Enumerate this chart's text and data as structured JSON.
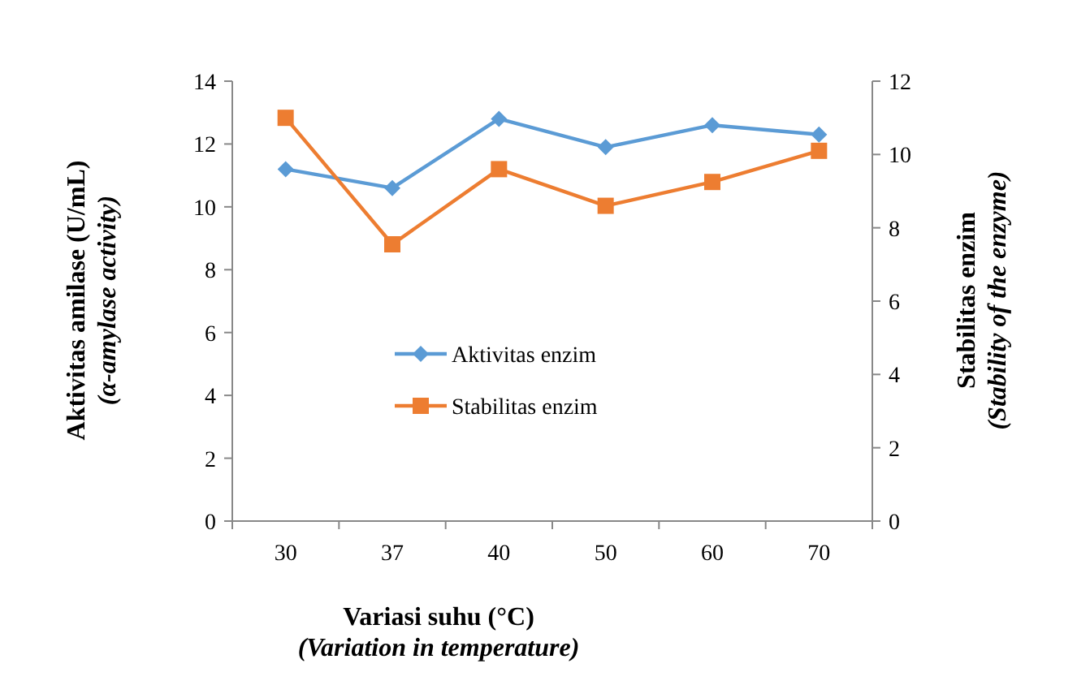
{
  "chart_data": {
    "type": "line",
    "xlabel": "Variasi suhu (°C)\n(Variation in temperature)",
    "ylabel": "Aktivitas amilase (U/mL)\n(α-amylase activity)",
    "y2label": "Stabilitas enzim\n(Stability of the enzyme)",
    "categories": [
      "30",
      "37",
      "40",
      "50",
      "60",
      "70"
    ],
    "series": [
      {
        "name": "Aktivitas enzim",
        "color": "#5b9bd5",
        "marker": "diamond",
        "values": [
          11.2,
          10.6,
          12.8,
          11.9,
          12.6,
          12.3
        ]
      },
      {
        "name": "Stabilitas enzim",
        "color": "#ed7d31",
        "marker": "square",
        "axis": "y2",
        "values": [
          11.0,
          7.55,
          9.6,
          8.6,
          9.25,
          10.1
        ]
      }
    ],
    "ylim": [
      0,
      14
    ],
    "yticks": [
      0,
      2,
      4,
      6,
      8,
      10,
      12,
      14
    ],
    "y2lim": [
      0,
      12
    ],
    "y2ticks": [
      0,
      2,
      4,
      6,
      8,
      10,
      12
    ],
    "grid": false,
    "legend": "center"
  }
}
